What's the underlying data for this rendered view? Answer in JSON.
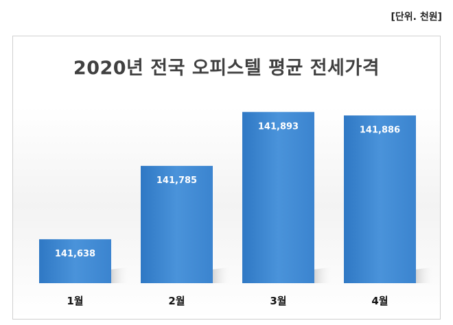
{
  "unit_label": "[단위. 천원]",
  "chart_data": {
    "type": "bar",
    "title": "2020년 전국 오피스텔 평균 전세가격",
    "categories": [
      "1월",
      "2월",
      "3월",
      "4월"
    ],
    "values": [
      141638,
      141785,
      141893,
      141886
    ],
    "value_labels": [
      "141,638",
      "141,785",
      "141,893",
      "141,886"
    ],
    "ylim": [
      141550,
      141925
    ],
    "bar_color": "#3d86cf",
    "grid": false,
    "legend": "none"
  }
}
